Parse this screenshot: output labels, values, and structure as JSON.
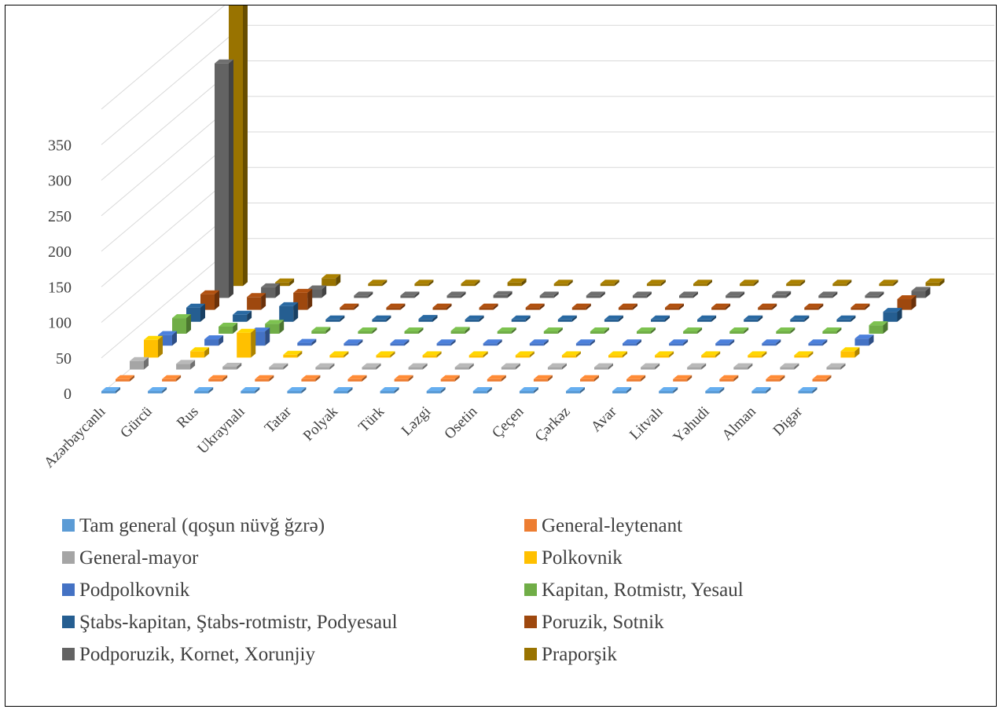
{
  "chart_data": {
    "type": "bar",
    "subtype": "3d-clustered-column",
    "title": "",
    "xlabel": "",
    "ylabel": "",
    "ylim": [
      0,
      400
    ],
    "yticks": [
      0,
      50,
      100,
      150,
      200,
      250,
      300,
      350
    ],
    "grid": true,
    "legend_position": "bottom",
    "categories": [
      "Azərbaycanlı",
      "Gürcü",
      "Rus",
      "Ukraynalı",
      "Tatar",
      "Polyak",
      "Türk",
      "Ləzgi",
      "Osetin",
      "Çeçen",
      "Çərkəz",
      "Avar",
      "Litvalı",
      "Yəhudi",
      "Alman",
      "Digər"
    ],
    "series": [
      {
        "name": "Tam general (qoşun nüvğ ğzrə)",
        "color": "#5B9BD5",
        "values": [
          1,
          0,
          0,
          0,
          0,
          0,
          0,
          0,
          0,
          0,
          0,
          0,
          0,
          0,
          0,
          0
        ]
      },
      {
        "name": "General-leytenant",
        "color": "#ED7D31",
        "values": [
          0,
          1,
          2,
          0,
          1,
          0,
          0,
          0,
          0,
          0,
          0,
          0,
          0,
          0,
          0,
          0
        ]
      },
      {
        "name": "General-mayor",
        "color": "#A5A5A5",
        "values": [
          12,
          8,
          4,
          1,
          1,
          0,
          1,
          0,
          0,
          0,
          3,
          0,
          0,
          0,
          0,
          2
        ]
      },
      {
        "name": "Polkovnik",
        "color": "#FFC000",
        "values": [
          25,
          9,
          35,
          4,
          2,
          0,
          1,
          0,
          0,
          0,
          0,
          0,
          0,
          0,
          0,
          9
        ]
      },
      {
        "name": "Podpolkovnik",
        "color": "#4472C4",
        "values": [
          15,
          9,
          20,
          4,
          1,
          2,
          1,
          1,
          1,
          1,
          1,
          1,
          1,
          2,
          1,
          10
        ]
      },
      {
        "name": "Kapitan, Rotmistr, Yesaul",
        "color": "#70AD47",
        "values": [
          22,
          10,
          14,
          4,
          2,
          2,
          4,
          1,
          1,
          1,
          1,
          1,
          2,
          1,
          2,
          12
        ]
      },
      {
        "name": "Ştabs-kapitan, Ştabs-rotmistr, Podyesaul",
        "color": "#255E91",
        "values": [
          20,
          10,
          22,
          1,
          1,
          4,
          2,
          3,
          1,
          1,
          1,
          1,
          1,
          1,
          1,
          14
        ]
      },
      {
        "name": "Poruzik, Sotnik",
        "color": "#9E480E",
        "values": [
          22,
          18,
          24,
          2,
          3,
          2,
          2,
          2,
          3,
          1,
          2,
          2,
          1,
          1,
          1,
          15
        ]
      },
      {
        "name": "Podporuzik, Kornet, Xorunjiy",
        "color": "#636363",
        "values": [
          330,
          15,
          12,
          2,
          3,
          1,
          4,
          2,
          2,
          2,
          2,
          2,
          4,
          2,
          2,
          10
        ]
      },
      {
        "name": "Praporşik",
        "color": "#997300",
        "values": [
          400,
          5,
          11,
          2,
          1,
          2,
          5,
          3,
          2,
          2,
          2,
          2,
          1,
          3,
          1,
          5
        ]
      }
    ]
  }
}
